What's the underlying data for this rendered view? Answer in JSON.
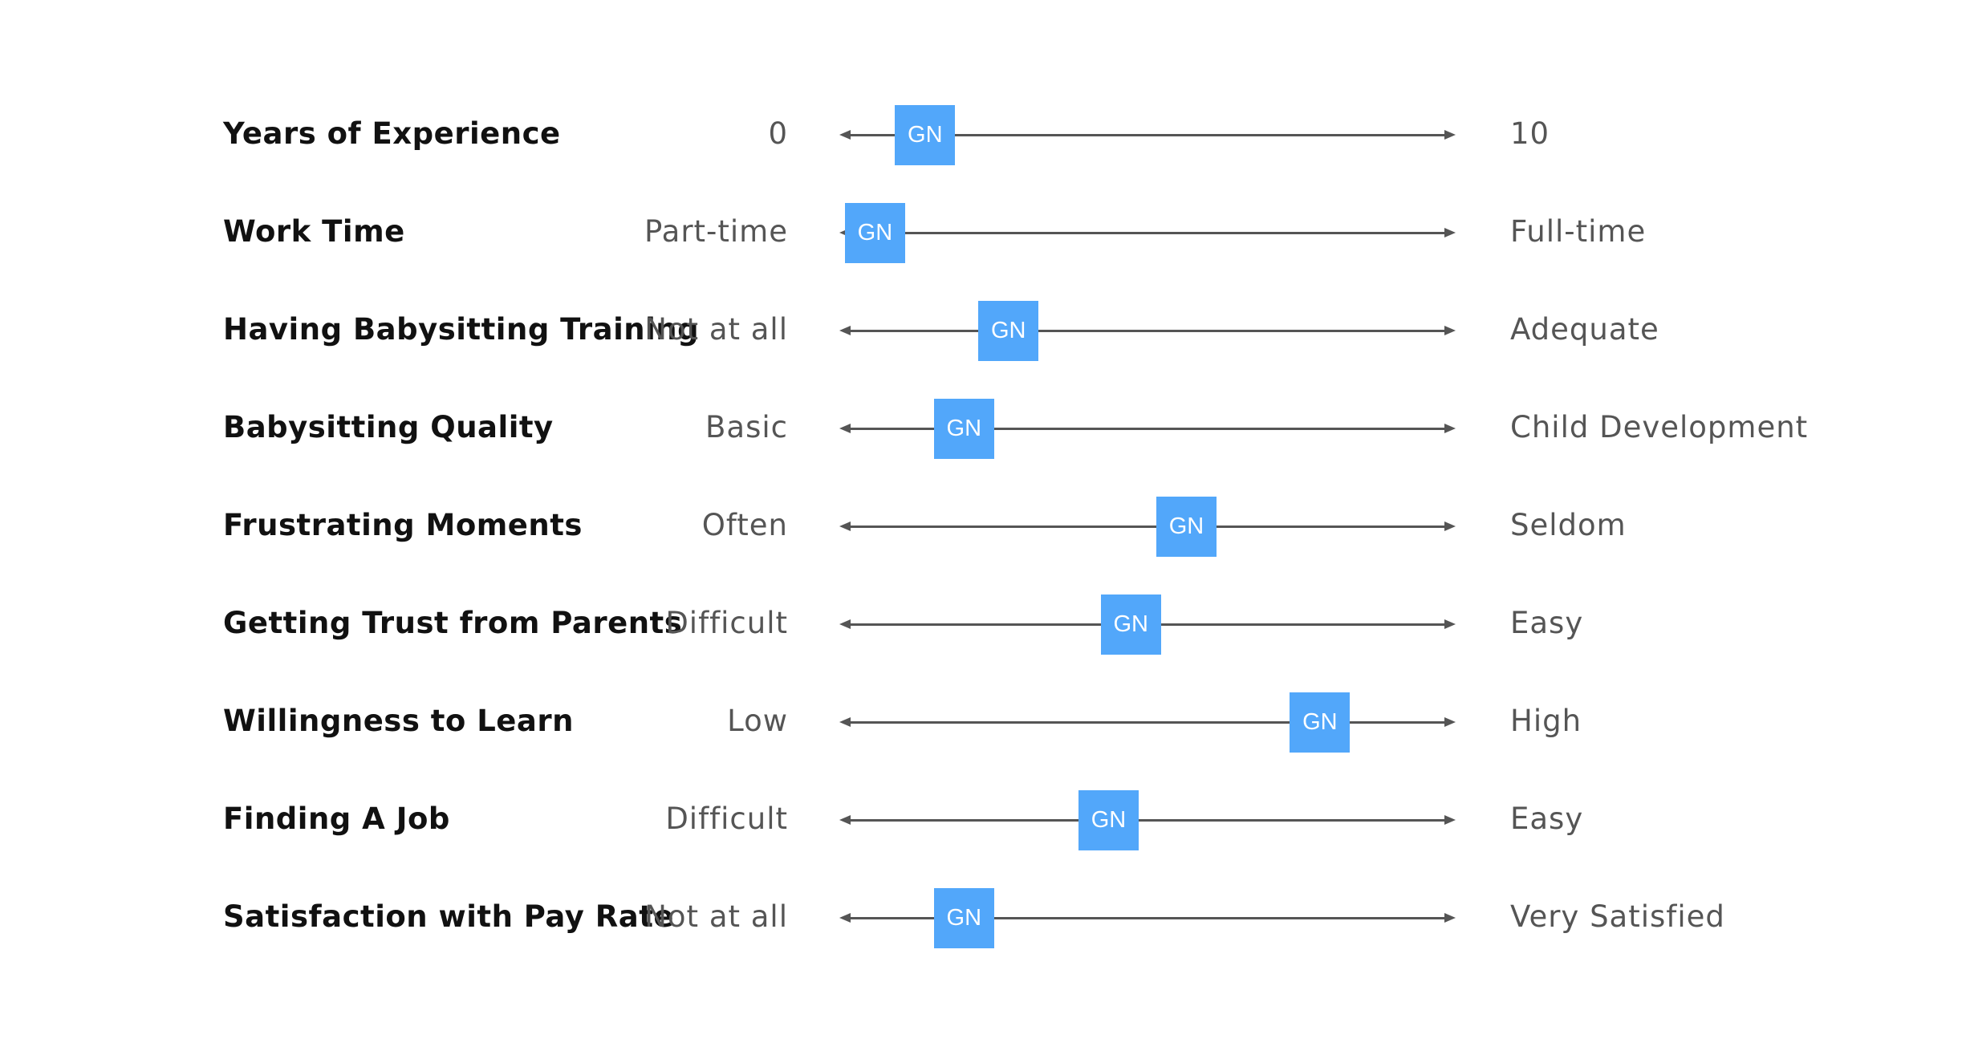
{
  "marker_color": "#52a7fa",
  "scales": [
    {
      "attribute": "Years of Experience",
      "min": "0",
      "max": "10",
      "marker": "GN",
      "level": 0.1
    },
    {
      "attribute": "Work Time",
      "min": "Part-time",
      "max": "Full-time",
      "marker": "GN",
      "level": 0.01
    },
    {
      "attribute": "Having Babysitting Training",
      "min": "Not at all",
      "max": "Adequate",
      "marker": "GN",
      "level": 0.25
    },
    {
      "attribute": "Babysitting Quality",
      "min": "Basic",
      "max": "Child Development",
      "marker": "GN",
      "level": 0.17
    },
    {
      "attribute": "Frustrating Moments",
      "min": "Often",
      "max": "Seldom",
      "marker": "GN",
      "level": 0.57
    },
    {
      "attribute": "Getting Trust from Parents",
      "min": "Difficult",
      "max": "Easy",
      "marker": "GN",
      "level": 0.47
    },
    {
      "attribute": "Willingness to Learn",
      "min": "Low",
      "max": "High",
      "marker": "GN",
      "level": 0.81
    },
    {
      "attribute": "Finding A Job",
      "min": "Difficult",
      "max": "Easy",
      "marker": "GN",
      "level": 0.43
    },
    {
      "attribute": "Satisfaction with Pay Rate",
      "min": "Not at all",
      "max": "Very Satisfied",
      "marker": "GN",
      "level": 0.17
    }
  ]
}
